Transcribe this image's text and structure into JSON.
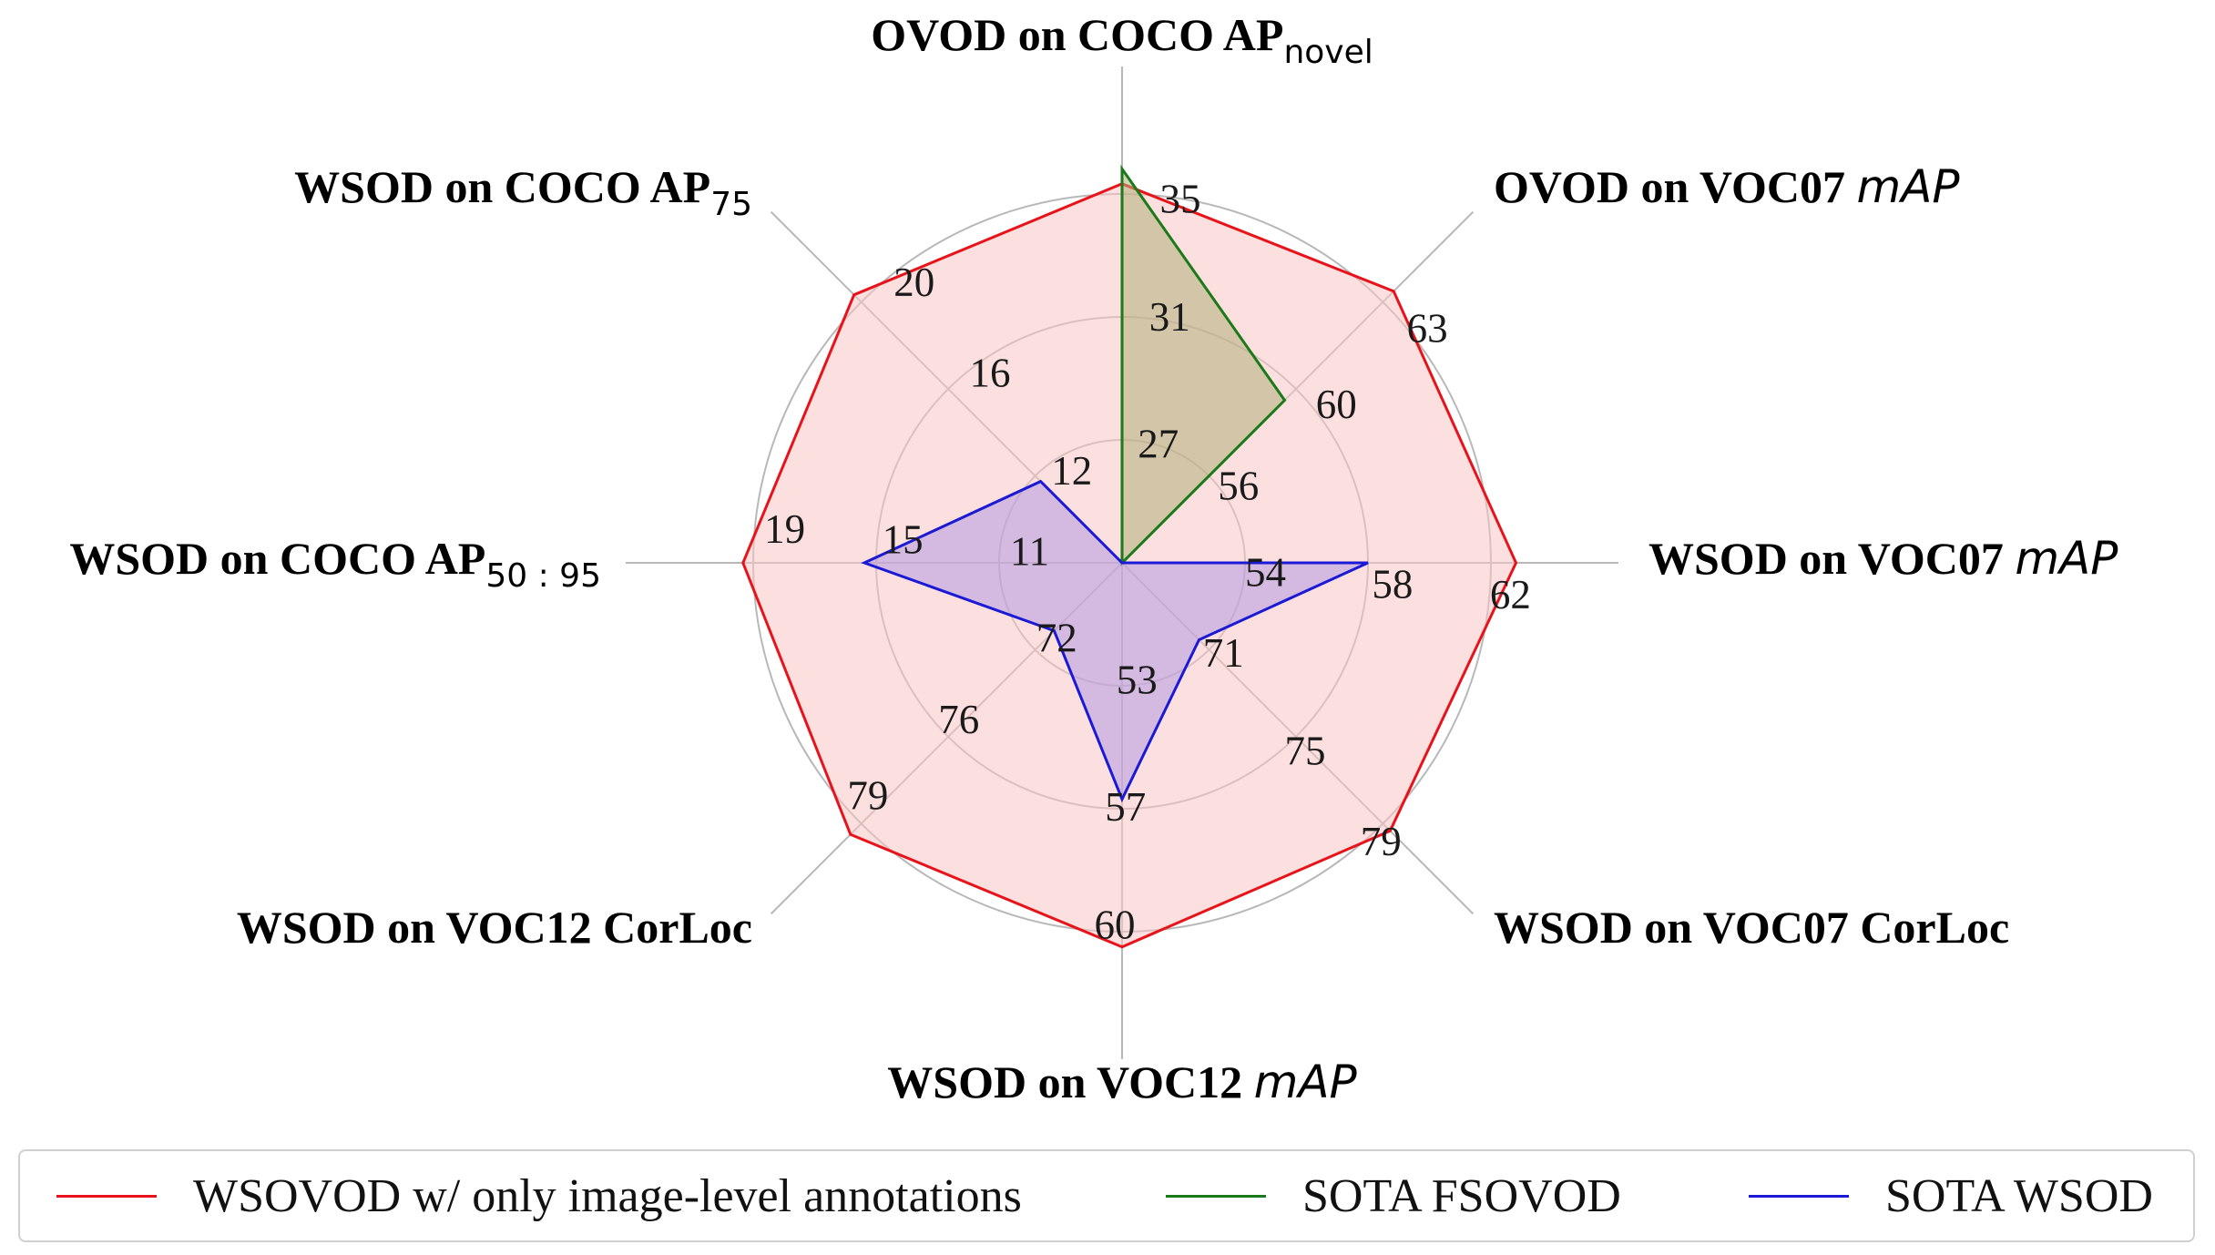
{
  "chart_data": {
    "type": "radar",
    "axes": [
      {
        "label": "OVOD on COCO AP",
        "label_sub": "novel",
        "label_italic": "",
        "ticks": [
          "27",
          "31",
          "35"
        ]
      },
      {
        "label": "OVOD on VOC07 ",
        "label_sub": "",
        "label_italic": "mAP",
        "ticks": [
          "56",
          "60",
          "63"
        ]
      },
      {
        "label": "WSOD on VOC07 ",
        "label_sub": "",
        "label_italic": "mAP",
        "ticks": [
          "54",
          "58",
          "62"
        ]
      },
      {
        "label": "WSOD on VOC07 CorLoc",
        "label_sub": "",
        "label_italic": "",
        "ticks": [
          "71",
          "75",
          "79"
        ]
      },
      {
        "label": "WSOD on VOC12 ",
        "label_sub": "",
        "label_italic": "mAP",
        "ticks": [
          "53",
          "57",
          "60"
        ]
      },
      {
        "label": "WSOD on VOC12 CorLoc",
        "label_sub": "",
        "label_italic": "",
        "ticks": [
          "72",
          "76",
          "79"
        ]
      },
      {
        "label": "WSOD on COCO AP",
        "label_sub": "50 : 95",
        "label_italic": "",
        "ticks": [
          "11",
          "15",
          "19"
        ]
      },
      {
        "label": "WSOD on COCO AP",
        "label_sub": "75",
        "label_italic": "",
        "ticks": [
          "12",
          "16",
          "20"
        ]
      }
    ],
    "series": [
      {
        "name": "WSOVOD w/ only image-level annotations",
        "color": "#e8131a",
        "fill": "#f9c4c4",
        "fill_opacity": 0.55,
        "values": [
          35.5,
          63.5,
          63.0,
          79.5,
          60.5,
          79.5,
          19.5,
          20.5
        ]
      },
      {
        "name": "SOTA FSOVOD",
        "color": "#1a7a1a",
        "fill": "#b0b07a",
        "fill_opacity": 0.55,
        "values": [
          36.0,
          59.5,
          null,
          null,
          null,
          null,
          null,
          null
        ]
      },
      {
        "name": "SOTA WSOD",
        "color": "#1a1ad6",
        "fill": "#b39be0",
        "fill_opacity": 0.55,
        "values": [
          null,
          null,
          58.0,
          70.7,
          56.7,
          71.3,
          15.4,
          11.9
        ]
      }
    ],
    "grid": true,
    "legend_position": "bottom"
  }
}
